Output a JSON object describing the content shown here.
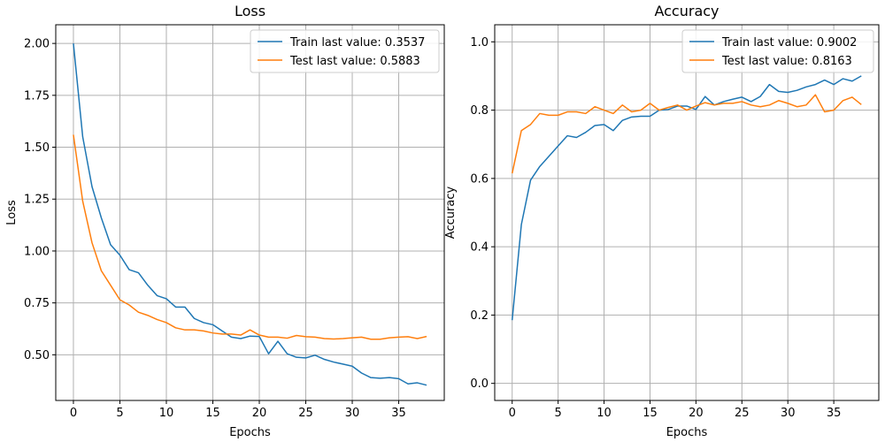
{
  "chart_data": [
    {
      "type": "line",
      "title": "Loss",
      "xlabel": "Epochs",
      "ylabel": "Loss",
      "xlim": [
        -1.9,
        39.9
      ],
      "ylim": [
        0.28,
        2.09
      ],
      "xticks": [
        0,
        5,
        10,
        15,
        20,
        25,
        30,
        35
      ],
      "yticks": [
        0.5,
        0.75,
        1.0,
        1.25,
        1.5,
        1.75,
        2.0
      ],
      "ytick_labels": [
        "0.50",
        "0.75",
        "1.00",
        "1.25",
        "1.50",
        "1.75",
        "2.00"
      ],
      "grid": true,
      "legend_position": "top-right",
      "series": [
        {
          "name": "Train last value: 0.3537",
          "color": "#1f77b4",
          "values": [
            2.0,
            1.55,
            1.31,
            1.16,
            1.03,
            0.98,
            0.91,
            0.895,
            0.835,
            0.785,
            0.77,
            0.73,
            0.73,
            0.675,
            0.655,
            0.645,
            0.615,
            0.585,
            0.578,
            0.59,
            0.588,
            0.505,
            0.565,
            0.505,
            0.488,
            0.485,
            0.498,
            0.478,
            0.465,
            0.455,
            0.445,
            0.412,
            0.39,
            0.387,
            0.39,
            0.385,
            0.36,
            0.365,
            0.3537
          ]
        },
        {
          "name": "Test last value: 0.5883",
          "color": "#ff7f0e",
          "values": [
            1.56,
            1.24,
            1.04,
            0.905,
            0.835,
            0.765,
            0.74,
            0.705,
            0.69,
            0.67,
            0.655,
            0.63,
            0.62,
            0.62,
            0.615,
            0.605,
            0.6,
            0.6,
            0.595,
            0.62,
            0.595,
            0.585,
            0.585,
            0.58,
            0.593,
            0.587,
            0.585,
            0.578,
            0.576,
            0.578,
            0.582,
            0.585,
            0.575,
            0.575,
            0.582,
            0.585,
            0.587,
            0.578,
            0.5883
          ]
        }
      ]
    },
    {
      "type": "line",
      "title": "Accuracy",
      "xlabel": "Epochs",
      "ylabel": "Accuracy",
      "xlim": [
        -1.9,
        39.9
      ],
      "ylim": [
        -0.05,
        1.05
      ],
      "xticks": [
        0,
        5,
        10,
        15,
        20,
        25,
        30,
        35
      ],
      "yticks": [
        0.0,
        0.2,
        0.4,
        0.6,
        0.8,
        1.0
      ],
      "ytick_labels": [
        "0.0",
        "0.2",
        "0.4",
        "0.6",
        "0.8",
        "1.0"
      ],
      "grid": true,
      "legend_position": "top-right",
      "series": [
        {
          "name": "Train last value: 0.9002",
          "color": "#1f77b4",
          "values": [
            0.185,
            0.465,
            0.595,
            0.635,
            0.665,
            0.695,
            0.725,
            0.72,
            0.735,
            0.755,
            0.758,
            0.74,
            0.77,
            0.78,
            0.782,
            0.782,
            0.8,
            0.802,
            0.812,
            0.812,
            0.802,
            0.84,
            0.815,
            0.825,
            0.832,
            0.838,
            0.825,
            0.84,
            0.875,
            0.855,
            0.852,
            0.858,
            0.868,
            0.875,
            0.888,
            0.875,
            0.892,
            0.885,
            0.9002
          ]
        },
        {
          "name": "Test last value: 0.8163",
          "color": "#ff7f0e",
          "values": [
            0.615,
            0.74,
            0.758,
            0.79,
            0.785,
            0.785,
            0.795,
            0.795,
            0.79,
            0.81,
            0.8,
            0.79,
            0.815,
            0.795,
            0.8,
            0.82,
            0.8,
            0.808,
            0.815,
            0.8,
            0.812,
            0.822,
            0.815,
            0.82,
            0.82,
            0.825,
            0.815,
            0.81,
            0.815,
            0.828,
            0.82,
            0.81,
            0.815,
            0.845,
            0.795,
            0.8,
            0.828,
            0.838,
            0.8163
          ]
        }
      ]
    }
  ]
}
